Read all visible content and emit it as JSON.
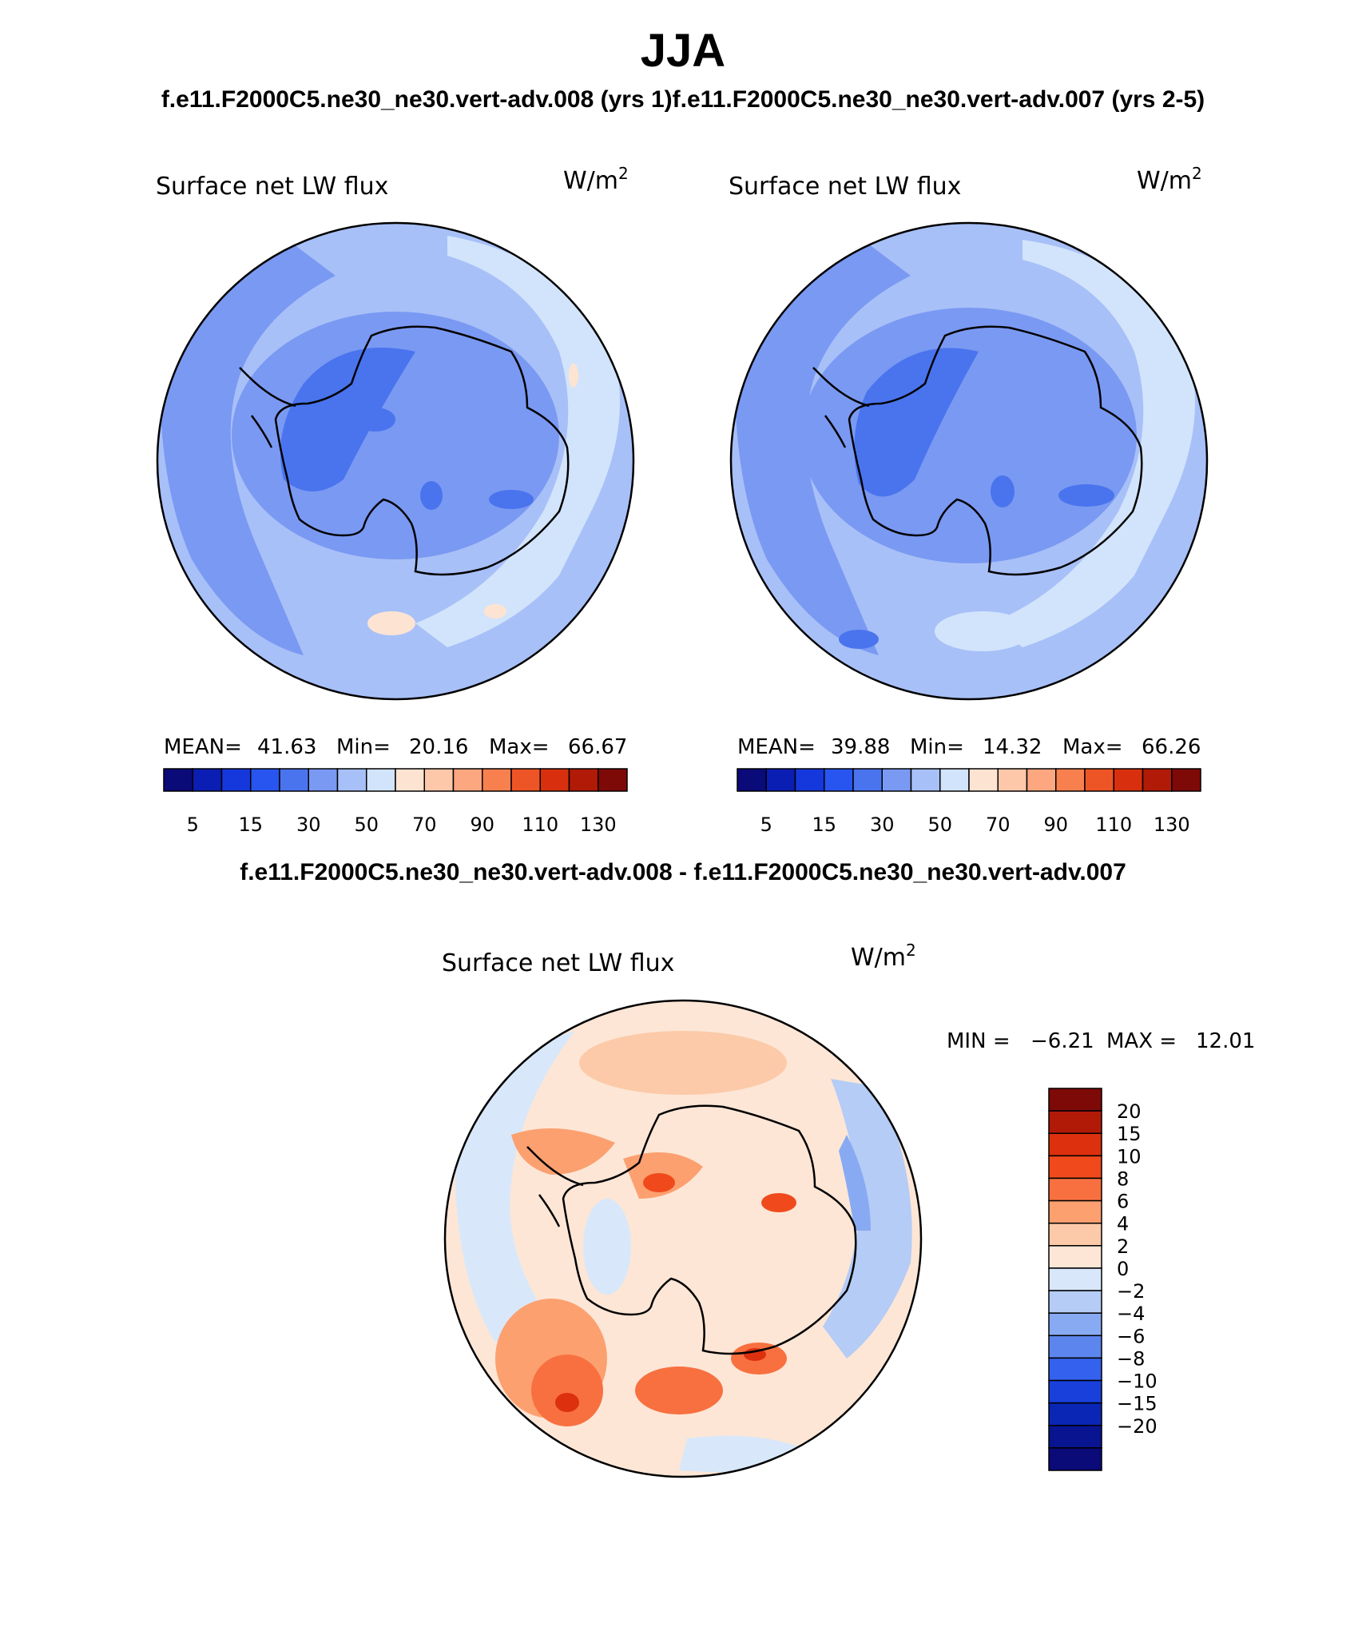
{
  "header": {
    "season": "JJA",
    "case_titles": "f.e11.F2000C5.ne30_ne30.vert-adv.008 (yrs 1)f.e11.F2000C5.ne30_ne30.vert-adv.007 (yrs 2-5)",
    "diff_title": "f.e11.F2000C5.ne30_ne30.vert-adv.008 - f.e11.F2000C5.ne30_ne30.vert-adv.007"
  },
  "panels": {
    "left": {
      "variable": "Surface net LW flux",
      "units": "W/m",
      "units_exp": "2",
      "stats": {
        "mean_label": "MEAN=",
        "mean": "41.63",
        "min_label": "Min=",
        "min": "20.16",
        "max_label": "Max=",
        "max": "66.67"
      }
    },
    "right": {
      "variable": "Surface net LW flux",
      "units": "W/m",
      "units_exp": "2",
      "stats": {
        "mean_label": "MEAN=",
        "mean": "39.88",
        "min_label": "Min=",
        "min": "14.32",
        "max_label": "Max=",
        "max": "66.26"
      }
    },
    "diff": {
      "variable": "Surface net LW flux",
      "units": "W/m",
      "units_exp": "2",
      "stats": {
        "min_label": "MIN =",
        "min": "−6.21",
        "max_label": "MAX =",
        "max": "12.01"
      }
    }
  },
  "colorbars": {
    "absolute": {
      "colors": [
        "#0a0a78",
        "#0a1eb4",
        "#1438dc",
        "#2855f0",
        "#4a74ee",
        "#7a99f2",
        "#a8c0f8",
        "#d2e4fb",
        "#fde4d2",
        "#fdc7aa",
        "#fca780",
        "#f8804f",
        "#ee5526",
        "#d8300e",
        "#b21a08",
        "#7e0a08"
      ],
      "tick_labels": [
        "5",
        "15",
        "30",
        "50",
        "70",
        "90",
        "110",
        "130"
      ]
    },
    "difference": {
      "colors": [
        "#7e0a08",
        "#b21a08",
        "#dc300e",
        "#f04a1c",
        "#f87040",
        "#fca070",
        "#fccaa8",
        "#fde6d6",
        "#d8e8fa",
        "#b4ccf6",
        "#88aaf2",
        "#5c86ee",
        "#3462ee",
        "#1a40dc",
        "#0a26b4",
        "#081490",
        "#0a0a78"
      ],
      "tick_labels": [
        "20",
        "15",
        "10",
        "8",
        "6",
        "4",
        "2",
        "0",
        "−2",
        "−4",
        "−6",
        "−8",
        "−10",
        "−15",
        "−20"
      ]
    }
  }
}
